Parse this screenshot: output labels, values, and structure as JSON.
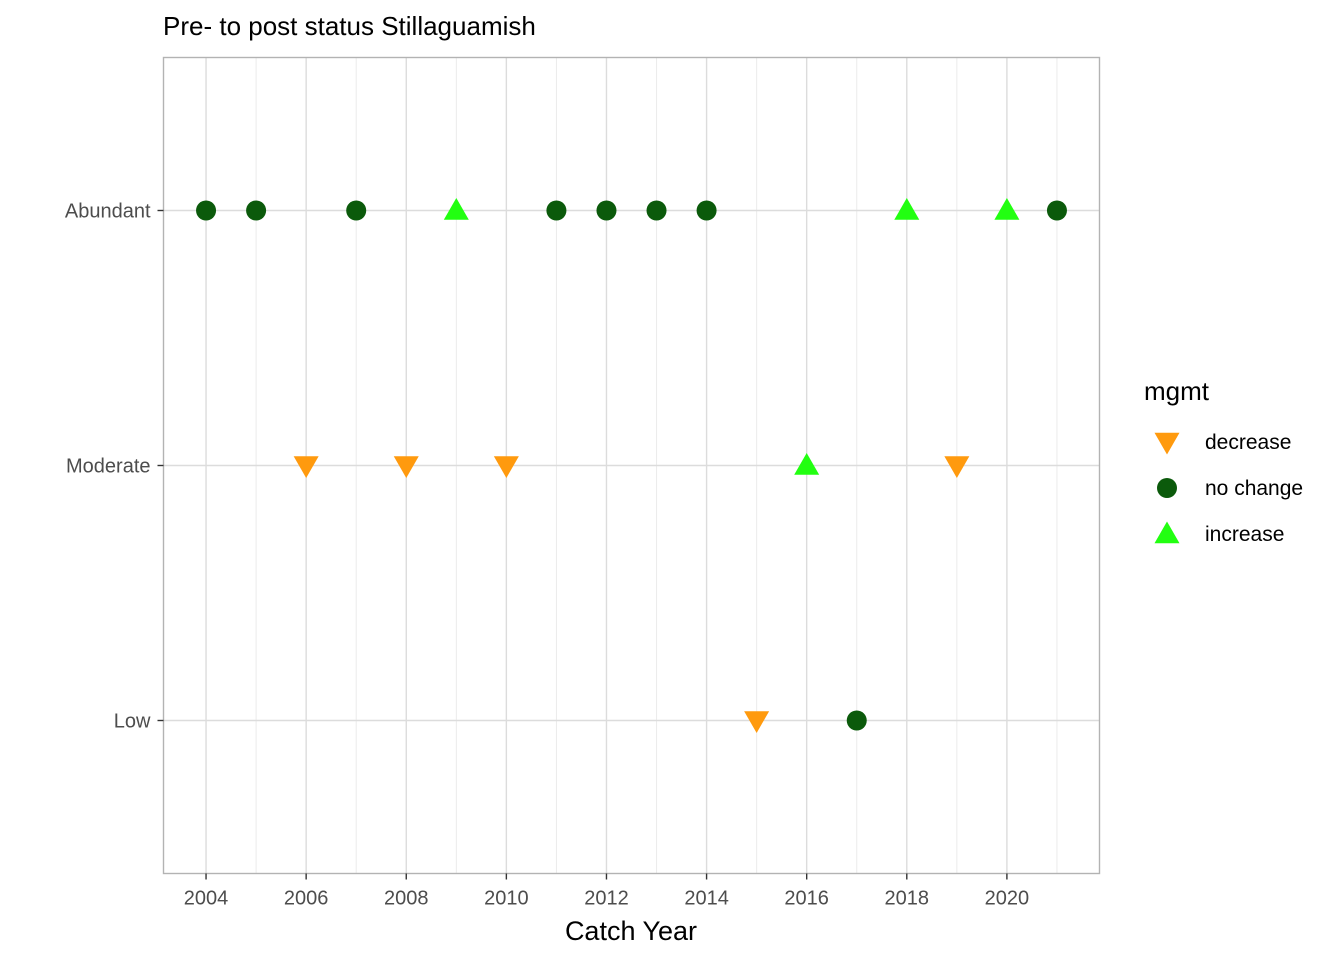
{
  "chart_data": {
    "type": "scatter",
    "title": "Pre- to post status Stillaguamish",
    "xlabel": "Catch Year",
    "ylabel": "",
    "xlim": [
      2003.15,
      2021.85
    ],
    "x_major_ticks": [
      2004,
      2006,
      2008,
      2010,
      2012,
      2014,
      2016,
      2018,
      2020
    ],
    "x_minor_gridlines": [
      2005,
      2007,
      2009,
      2011,
      2013,
      2015,
      2017,
      2019,
      2021
    ],
    "y_categories": [
      "Low",
      "Moderate",
      "Abundant"
    ],
    "grid": true,
    "legend": {
      "title": "mgmt",
      "placement": "right",
      "entries": [
        {
          "label": "decrease",
          "shape": "triangle-down",
          "color": "#FF9A0E"
        },
        {
          "label": "no change",
          "shape": "circle",
          "color": "#0B5A0B"
        },
        {
          "label": "increase",
          "shape": "triangle-up",
          "color": "#22FF11"
        }
      ]
    },
    "points": [
      {
        "x": 2004,
        "y": "Abundant",
        "mgmt": "no change"
      },
      {
        "x": 2005,
        "y": "Abundant",
        "mgmt": "no change"
      },
      {
        "x": 2006,
        "y": "Moderate",
        "mgmt": "decrease"
      },
      {
        "x": 2007,
        "y": "Abundant",
        "mgmt": "no change"
      },
      {
        "x": 2008,
        "y": "Moderate",
        "mgmt": "decrease"
      },
      {
        "x": 2009,
        "y": "Abundant",
        "mgmt": "increase"
      },
      {
        "x": 2010,
        "y": "Moderate",
        "mgmt": "decrease"
      },
      {
        "x": 2011,
        "y": "Abundant",
        "mgmt": "no change"
      },
      {
        "x": 2012,
        "y": "Abundant",
        "mgmt": "no change"
      },
      {
        "x": 2013,
        "y": "Abundant",
        "mgmt": "no change"
      },
      {
        "x": 2014,
        "y": "Abundant",
        "mgmt": "no change"
      },
      {
        "x": 2015,
        "y": "Low",
        "mgmt": "decrease"
      },
      {
        "x": 2016,
        "y": "Moderate",
        "mgmt": "increase"
      },
      {
        "x": 2017,
        "y": "Low",
        "mgmt": "no change"
      },
      {
        "x": 2018,
        "y": "Abundant",
        "mgmt": "increase"
      },
      {
        "x": 2019,
        "y": "Moderate",
        "mgmt": "decrease"
      },
      {
        "x": 2020,
        "y": "Abundant",
        "mgmt": "increase"
      },
      {
        "x": 2021,
        "y": "Abundant",
        "mgmt": "no change"
      }
    ]
  }
}
